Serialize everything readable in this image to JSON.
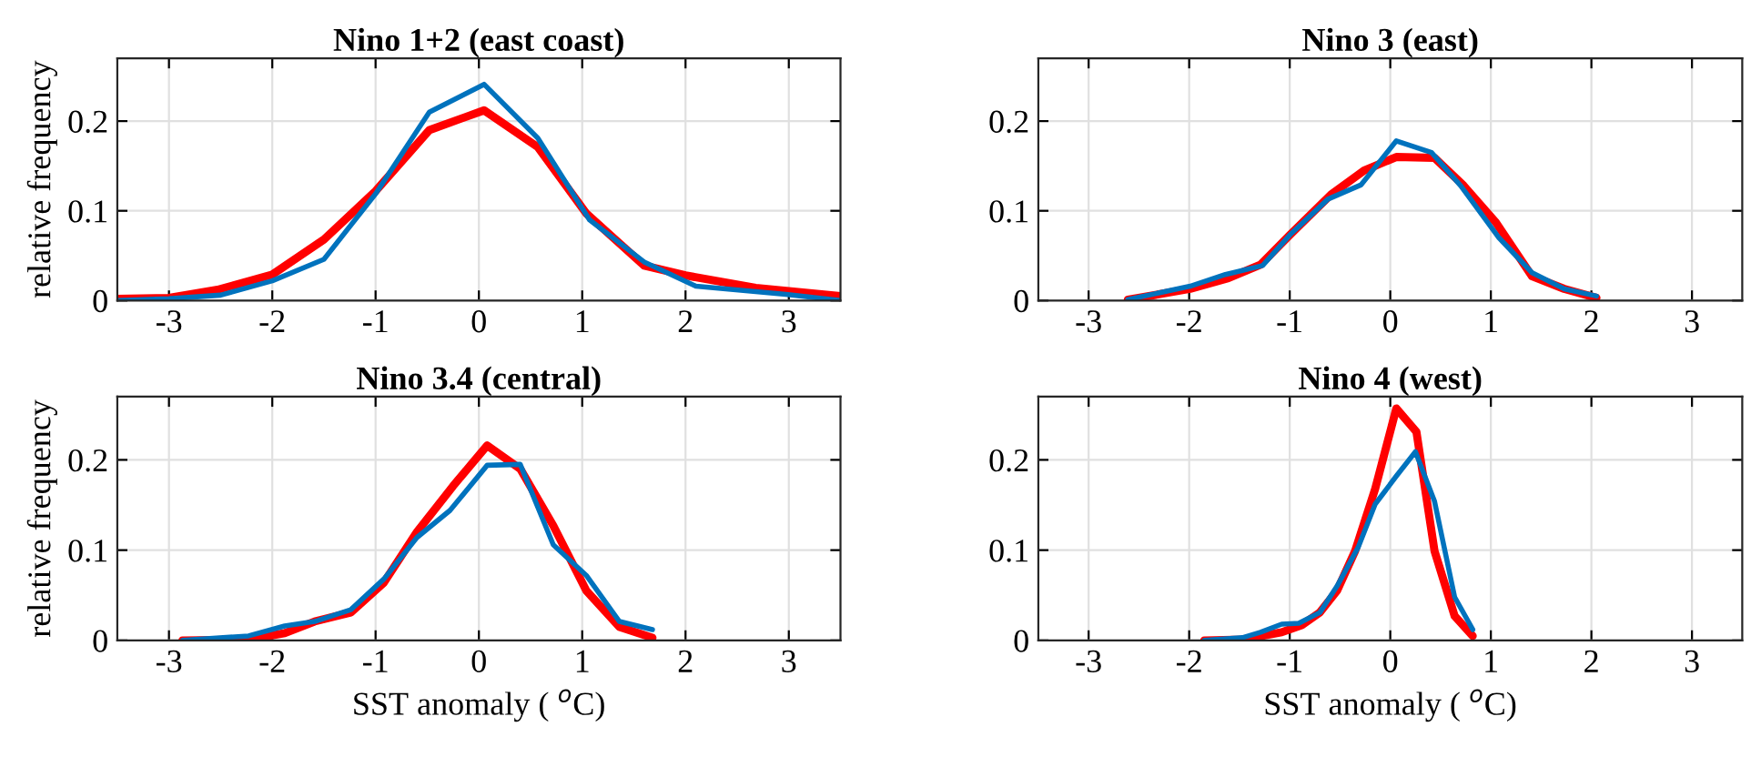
{
  "chart_data": [
    {
      "type": "line",
      "title": "Nino 1+2 (east coast)",
      "ylabel": "relative frequency",
      "xlim": [
        -3.5,
        3.5
      ],
      "ylim": [
        0,
        0.27
      ],
      "xticks": [
        -3,
        -2,
        -1,
        0,
        1,
        2,
        3
      ],
      "yticks": [
        0,
        0.1,
        0.2
      ],
      "grid": true,
      "series": [
        {
          "color": "#ff0000",
          "x": [
            -3.5,
            -3,
            -2.53,
            -2,
            -1.5,
            -1,
            -0.48,
            0.05,
            0.57,
            1.04,
            1.6,
            2,
            2.68,
            3.5
          ],
          "values": [
            0.002,
            0.003,
            0.012,
            0.029,
            0.068,
            0.122,
            0.19,
            0.212,
            0.171,
            0.097,
            0.039,
            0.028,
            0.014,
            0.005
          ]
        },
        {
          "color": "#0072bd",
          "x": [
            -3.5,
            -3,
            -2.5,
            -2,
            -1.5,
            -1,
            -0.48,
            0.05,
            0.57,
            1.07,
            1.6,
            2.1,
            2.97,
            3.5
          ],
          "values": [
            0,
            0.002,
            0.006,
            0.022,
            0.046,
            0.119,
            0.21,
            0.241,
            0.181,
            0.09,
            0.043,
            0.016,
            0.007,
            0
          ]
        }
      ]
    },
    {
      "type": "line",
      "title": "Nino 3 (east)",
      "xlim": [
        -3.5,
        3.5
      ],
      "ylim": [
        0,
        0.27
      ],
      "xticks": [
        -3,
        -2,
        -1,
        0,
        1,
        2,
        3
      ],
      "yticks": [
        0,
        0.1,
        0.2
      ],
      "grid": true,
      "series": [
        {
          "color": "#ff0000",
          "x": [
            -2.61,
            -1.99,
            -1.61,
            -1.29,
            -1.0,
            -0.59,
            -0.26,
            0.06,
            0.44,
            0.73,
            1.05,
            1.41,
            1.73,
            2.05
          ],
          "values": [
            0.001,
            0.013,
            0.025,
            0.04,
            0.073,
            0.118,
            0.145,
            0.16,
            0.159,
            0.128,
            0.087,
            0.027,
            0.013,
            0.003
          ]
        },
        {
          "color": "#0072bd",
          "x": [
            -2.61,
            -1.99,
            -1.64,
            -1.27,
            -1.0,
            -0.62,
            -0.29,
            0.06,
            0.41,
            0.7,
            1.08,
            1.41,
            1.73,
            2.05
          ],
          "values": [
            0.001,
            0.016,
            0.029,
            0.039,
            0.073,
            0.113,
            0.129,
            0.178,
            0.165,
            0.128,
            0.07,
            0.031,
            0.013,
            0.005
          ]
        }
      ]
    },
    {
      "type": "line",
      "title": "Nino 3.4 (central)",
      "ylabel": "relative frequency",
      "xlabel": "SST anomaly ( $^{o}$C)",
      "xlim": [
        -3.5,
        3.5
      ],
      "ylim": [
        0,
        0.27
      ],
      "xticks": [
        -3,
        -2,
        -1,
        0,
        1,
        2,
        3
      ],
      "yticks": [
        0,
        0.1,
        0.2
      ],
      "grid": true,
      "series": [
        {
          "color": "#ff0000",
          "x": [
            -2.87,
            -2.23,
            -1.88,
            -1.59,
            -1.24,
            -0.92,
            -0.6,
            -0.25,
            0.08,
            0.4,
            0.72,
            1.04,
            1.36,
            1.68
          ],
          "values": [
            0,
            0.001,
            0.008,
            0.021,
            0.031,
            0.064,
            0.12,
            0.171,
            0.216,
            0.19,
            0.127,
            0.055,
            0.015,
            0.003
          ]
        },
        {
          "color": "#0072bd",
          "x": [
            -2.87,
            -2.23,
            -1.88,
            -1.59,
            -1.24,
            -0.92,
            -0.6,
            -0.28,
            0.08,
            0.4,
            0.72,
            1.04,
            1.36,
            1.68
          ],
          "values": [
            0,
            0.005,
            0.016,
            0.021,
            0.034,
            0.068,
            0.114,
            0.144,
            0.194,
            0.195,
            0.106,
            0.072,
            0.021,
            0.012
          ]
        }
      ]
    },
    {
      "type": "line",
      "title": "Nino 4 (west)",
      "xlabel": "SST anomaly ( $^{o}$C)",
      "xlim": [
        -3.5,
        3.5
      ],
      "ylim": [
        0,
        0.27
      ],
      "xticks": [
        -3,
        -2,
        -1,
        0,
        1,
        2,
        3
      ],
      "yticks": [
        0,
        0.1,
        0.2
      ],
      "grid": true,
      "series": [
        {
          "color": "#ff0000",
          "x": [
            -1.85,
            -1.47,
            -1.08,
            -0.88,
            -0.7,
            -0.53,
            -0.35,
            -0.15,
            0.06,
            0.26,
            0.44,
            0.64,
            0.82
          ],
          "values": [
            0,
            0.001,
            0.009,
            0.017,
            0.031,
            0.055,
            0.099,
            0.168,
            0.257,
            0.231,
            0.099,
            0.027,
            0.005
          ]
        },
        {
          "color": "#0072bd",
          "x": [
            -1.85,
            -1.47,
            -1.29,
            -1.08,
            -0.91,
            -0.7,
            -0.53,
            -0.32,
            -0.15,
            0.06,
            0.25,
            0.44,
            0.64,
            0.82
          ],
          "values": [
            0,
            0.003,
            0.009,
            0.018,
            0.019,
            0.031,
            0.06,
            0.103,
            0.151,
            0.182,
            0.209,
            0.154,
            0.048,
            0.012
          ]
        }
      ]
    }
  ]
}
